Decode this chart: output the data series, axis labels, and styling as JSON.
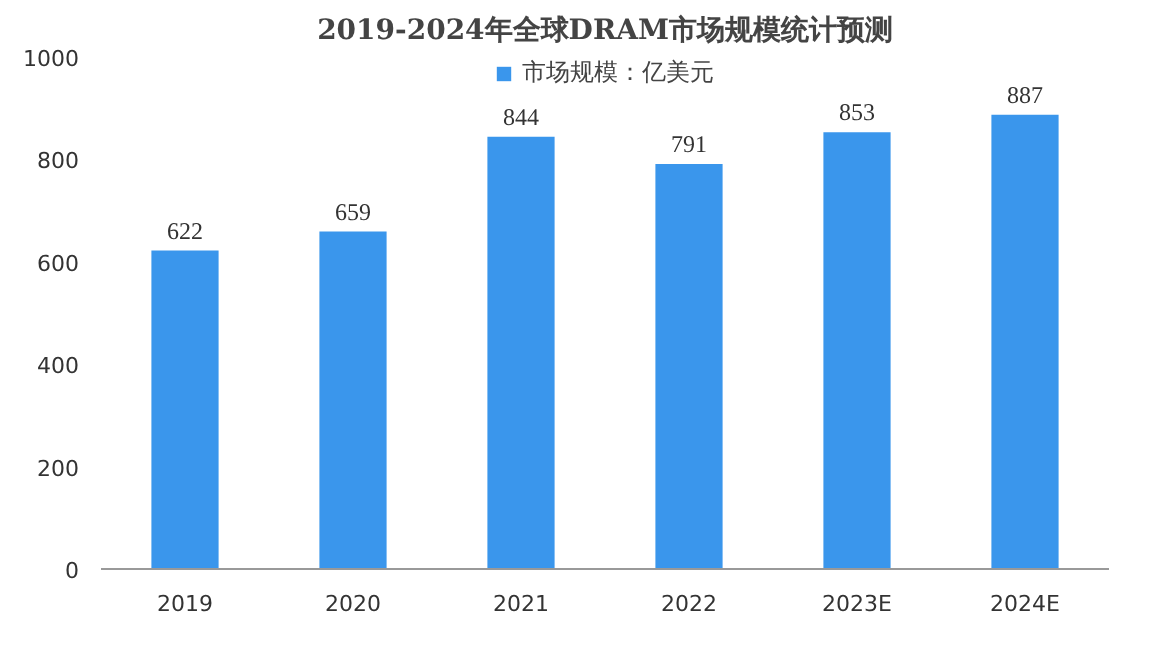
{
  "chart_data": {
    "type": "bar",
    "title": "2019-2024年全球DRAM市场规模统计预测",
    "categories": [
      "2019",
      "2020",
      "2021",
      "2022",
      "2023E",
      "2024E"
    ],
    "series": [
      {
        "name": "市场规模：亿美元",
        "color": "#3a96ec",
        "values": [
          622,
          659,
          844,
          791,
          853,
          887
        ]
      }
    ],
    "ylim": [
      0,
      1000
    ],
    "yticks": [
      0,
      200,
      400,
      600,
      800,
      1000
    ],
    "data_labels": true,
    "grid": false,
    "legend": "top"
  }
}
